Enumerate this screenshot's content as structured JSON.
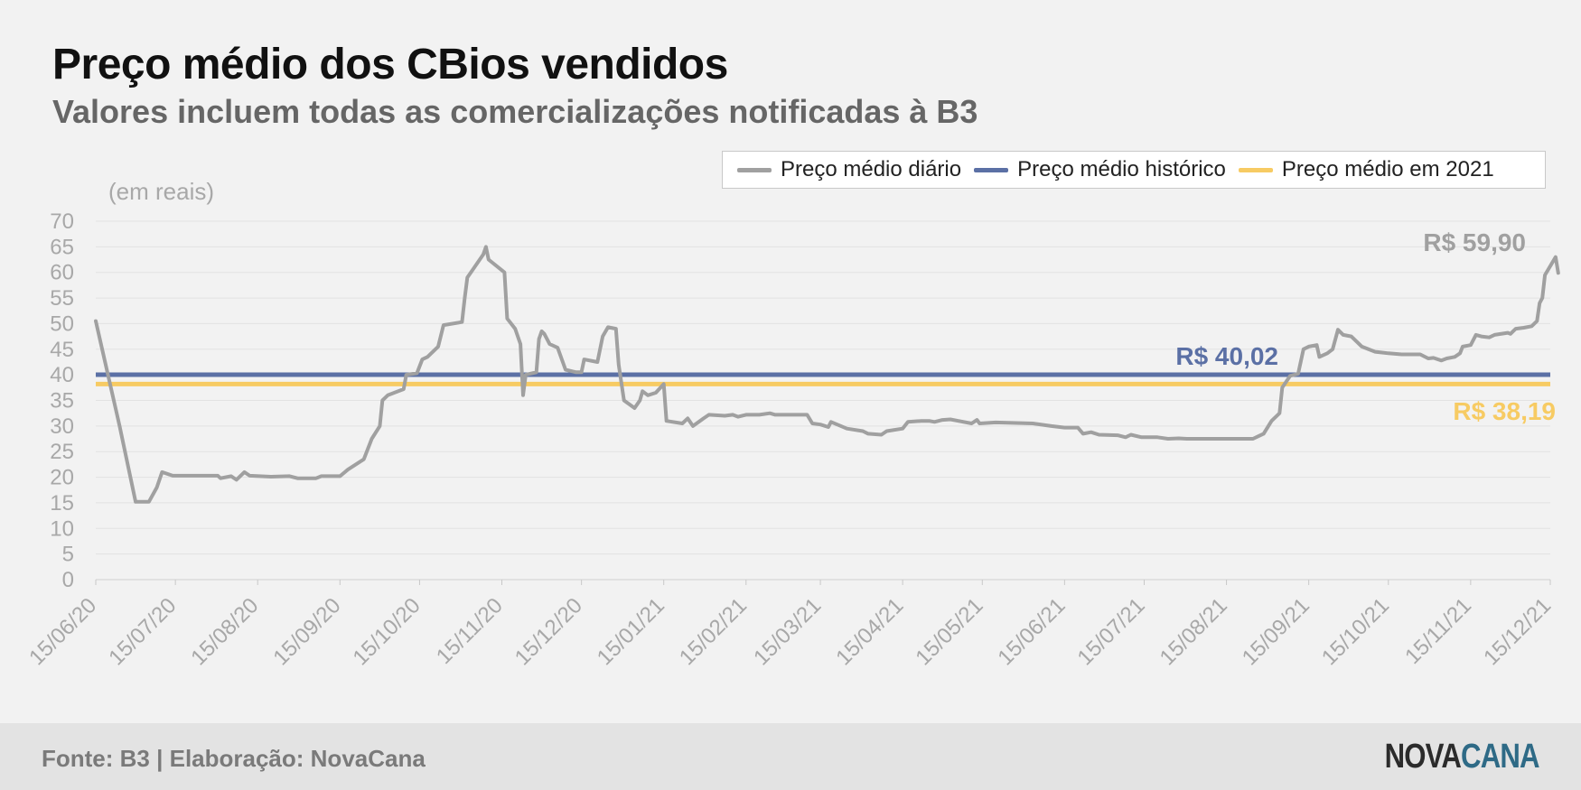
{
  "title": "Preço médio dos CBios vendidos",
  "subtitle": "Valores incluem todas as comercializações notificadas à B3",
  "source": "Fonte: B3 | Elaboração: NovaCana",
  "logo": {
    "part1": "NOVA",
    "part2": "CANA"
  },
  "colors": {
    "daily": "#a0a0a0",
    "historic": "#5b70a5",
    "avg2021": "#f7cb63",
    "grid": "#e2e2e2",
    "axis_text": "#a8a8a8"
  },
  "legend": [
    {
      "label": "Preço médio diário",
      "color": "#a0a0a0"
    },
    {
      "label": "Preço médio histórico",
      "color": "#5b70a5"
    },
    {
      "label": "Preço médio em 2021",
      "color": "#f7cb63"
    }
  ],
  "chart_data": {
    "type": "line",
    "ylabel": "(em reais)",
    "ylim": [
      0,
      70
    ],
    "yticks": [
      0,
      5,
      10,
      15,
      20,
      25,
      30,
      35,
      40,
      45,
      50,
      55,
      60,
      65,
      70
    ],
    "xlim": [
      "2020-06-15",
      "2021-12-15"
    ],
    "xticks": [
      "15/06/20",
      "15/07/20",
      "15/08/20",
      "15/09/20",
      "15/10/20",
      "15/11/20",
      "15/12/20",
      "15/01/21",
      "15/02/21",
      "15/03/21",
      "15/04/21",
      "15/05/21",
      "15/06/21",
      "15/07/21",
      "15/08/21",
      "15/09/21",
      "15/10/21",
      "15/11/21",
      "15/12/21"
    ],
    "grid": true,
    "legend_position": "top-right",
    "series": [
      {
        "name": "Preço médio diário",
        "points": [
          [
            "2020-06-15",
            50.5
          ],
          [
            "2020-06-24",
            30
          ],
          [
            "2020-06-30",
            15.2
          ],
          [
            "2020-07-05",
            15.2
          ],
          [
            "2020-07-08",
            18
          ],
          [
            "2020-07-10",
            21
          ],
          [
            "2020-07-14",
            20.3
          ],
          [
            "2020-07-31",
            20.3
          ],
          [
            "2020-08-01",
            19.8
          ],
          [
            "2020-08-05",
            20.2
          ],
          [
            "2020-08-07",
            19.5
          ],
          [
            "2020-08-10",
            21
          ],
          [
            "2020-08-12",
            20.3
          ],
          [
            "2020-08-20",
            20.1
          ],
          [
            "2020-08-27",
            20.2
          ],
          [
            "2020-08-30",
            19.8
          ],
          [
            "2020-09-06",
            19.8
          ],
          [
            "2020-09-08",
            20.2
          ],
          [
            "2020-09-15",
            20.2
          ],
          [
            "2020-09-18",
            21.5
          ],
          [
            "2020-09-24",
            23.5
          ],
          [
            "2020-09-27",
            27.5
          ],
          [
            "2020-09-30",
            30
          ],
          [
            "2020-10-01",
            35
          ],
          [
            "2020-10-03",
            36
          ],
          [
            "2020-10-07",
            36.8
          ],
          [
            "2020-10-09",
            37.2
          ],
          [
            "2020-10-10",
            40
          ],
          [
            "2020-10-14",
            40.3
          ],
          [
            "2020-10-16",
            43
          ],
          [
            "2020-10-18",
            43.5
          ],
          [
            "2020-10-22",
            45.5
          ],
          [
            "2020-10-24",
            49.7
          ],
          [
            "2020-10-31",
            50.3
          ],
          [
            "2020-11-01",
            55
          ],
          [
            "2020-11-02",
            59
          ],
          [
            "2020-11-04",
            60.5
          ],
          [
            "2020-11-08",
            63.5
          ],
          [
            "2020-11-09",
            65
          ],
          [
            "2020-11-10",
            62.5
          ],
          [
            "2020-11-16",
            60
          ],
          [
            "2020-11-17",
            51
          ],
          [
            "2020-11-20",
            49
          ],
          [
            "2020-11-22",
            46
          ],
          [
            "2020-11-23",
            36
          ],
          [
            "2020-11-24",
            40
          ],
          [
            "2020-11-28",
            40.5
          ],
          [
            "2020-11-29",
            47
          ],
          [
            "2020-11-30",
            48.5
          ],
          [
            "2020-12-01",
            48
          ],
          [
            "2020-12-03",
            46
          ],
          [
            "2020-12-06",
            45.3
          ],
          [
            "2020-12-09",
            41
          ],
          [
            "2020-12-13",
            40.5
          ],
          [
            "2020-12-15",
            40.5
          ],
          [
            "2020-12-16",
            43
          ],
          [
            "2020-12-21",
            42.5
          ],
          [
            "2020-12-23",
            47.5
          ],
          [
            "2020-12-25",
            49.3
          ],
          [
            "2020-12-28",
            49
          ],
          [
            "2020-12-29",
            42
          ],
          [
            "2020-12-31",
            35
          ],
          [
            "2021-01-04",
            33.5
          ],
          [
            "2021-01-06",
            35
          ],
          [
            "2021-01-07",
            36.8
          ],
          [
            "2021-01-09",
            36
          ],
          [
            "2021-01-12",
            36.5
          ],
          [
            "2021-01-15",
            38.2
          ],
          [
            "2021-01-16",
            31
          ],
          [
            "2021-01-22",
            30.5
          ],
          [
            "2021-01-24",
            31.5
          ],
          [
            "2021-01-26",
            30
          ],
          [
            "2021-01-30",
            31.5
          ],
          [
            "2021-02-01",
            32.2
          ],
          [
            "2021-02-07",
            32
          ],
          [
            "2021-02-10",
            32.2
          ],
          [
            "2021-02-12",
            31.8
          ],
          [
            "2021-02-15",
            32.2
          ],
          [
            "2021-02-20",
            32.2
          ],
          [
            "2021-02-24",
            32.5
          ],
          [
            "2021-02-26",
            32.2
          ],
          [
            "2021-03-10",
            32.2
          ],
          [
            "2021-03-12",
            30.5
          ],
          [
            "2021-03-15",
            30.3
          ],
          [
            "2021-03-18",
            29.8
          ],
          [
            "2021-03-19",
            30.8
          ],
          [
            "2021-03-25",
            29.5
          ],
          [
            "2021-03-31",
            29
          ],
          [
            "2021-04-02",
            28.5
          ],
          [
            "2021-04-07",
            28.3
          ],
          [
            "2021-04-09",
            29
          ],
          [
            "2021-04-15",
            29.5
          ],
          [
            "2021-04-17",
            30.8
          ],
          [
            "2021-04-22",
            31
          ],
          [
            "2021-04-25",
            31
          ],
          [
            "2021-04-27",
            30.8
          ],
          [
            "2021-04-30",
            31.2
          ],
          [
            "2021-05-03",
            31.3
          ],
          [
            "2021-05-06",
            31
          ],
          [
            "2021-05-11",
            30.5
          ],
          [
            "2021-05-13",
            31.2
          ],
          [
            "2021-05-14",
            30.5
          ],
          [
            "2021-05-20",
            30.7
          ],
          [
            "2021-06-03",
            30.5
          ],
          [
            "2021-06-10",
            30
          ],
          [
            "2021-06-15",
            29.7
          ],
          [
            "2021-06-20",
            29.7
          ],
          [
            "2021-06-22",
            28.5
          ],
          [
            "2021-06-25",
            28.8
          ],
          [
            "2021-06-28",
            28.3
          ],
          [
            "2021-07-05",
            28.2
          ],
          [
            "2021-07-08",
            27.8
          ],
          [
            "2021-07-10",
            28.3
          ],
          [
            "2021-07-14",
            27.8
          ],
          [
            "2021-07-20",
            27.8
          ],
          [
            "2021-07-24",
            27.5
          ],
          [
            "2021-07-28",
            27.6
          ],
          [
            "2021-07-31",
            27.5
          ],
          [
            "2021-08-25",
            27.5
          ],
          [
            "2021-08-27",
            28
          ],
          [
            "2021-08-29",
            28.5
          ],
          [
            "2021-09-01",
            31
          ],
          [
            "2021-09-04",
            32.5
          ],
          [
            "2021-09-05",
            37.5
          ],
          [
            "2021-09-08",
            39.8
          ],
          [
            "2021-09-11",
            40.2
          ],
          [
            "2021-09-13",
            45
          ],
          [
            "2021-09-15",
            45.5
          ],
          [
            "2021-09-18",
            45.8
          ],
          [
            "2021-09-19",
            43.5
          ],
          [
            "2021-09-22",
            44.2
          ],
          [
            "2021-09-24",
            45
          ],
          [
            "2021-09-26",
            48.8
          ],
          [
            "2021-09-28",
            47.8
          ],
          [
            "2021-10-01",
            47.5
          ],
          [
            "2021-10-05",
            45.5
          ],
          [
            "2021-10-10",
            44.5
          ],
          [
            "2021-10-15",
            44.2
          ],
          [
            "2021-10-20",
            44
          ],
          [
            "2021-10-27",
            44
          ],
          [
            "2021-10-30",
            43.2
          ],
          [
            "2021-11-01",
            43.3
          ],
          [
            "2021-11-04",
            42.8
          ],
          [
            "2021-11-06",
            43.2
          ],
          [
            "2021-11-09",
            43.5
          ],
          [
            "2021-11-11",
            44.2
          ],
          [
            "2021-11-12",
            45.5
          ],
          [
            "2021-11-15",
            45.8
          ],
          [
            "2021-11-17",
            47.8
          ],
          [
            "2021-11-19",
            47.5
          ],
          [
            "2021-11-22",
            47.3
          ],
          [
            "2021-11-24",
            47.8
          ],
          [
            "2021-11-29",
            48.2
          ],
          [
            "2021-11-30",
            48
          ],
          [
            "2021-12-02",
            49
          ],
          [
            "2021-12-05",
            49.2
          ],
          [
            "2021-12-08",
            49.5
          ],
          [
            "2021-12-10",
            50.5
          ],
          [
            "2021-12-11",
            54
          ],
          [
            "2021-12-12",
            55
          ],
          [
            "2021-12-13",
            59.5
          ],
          [
            "2021-12-17",
            63
          ],
          [
            "2021-12-18",
            59.9
          ]
        ],
        "end_label": "R$ 59,90"
      },
      {
        "name": "Preço médio histórico",
        "value": 40.02,
        "label": "R$ 40,02"
      },
      {
        "name": "Preço médio em 2021",
        "value": 38.19,
        "label": "R$ 38,19"
      }
    ]
  }
}
